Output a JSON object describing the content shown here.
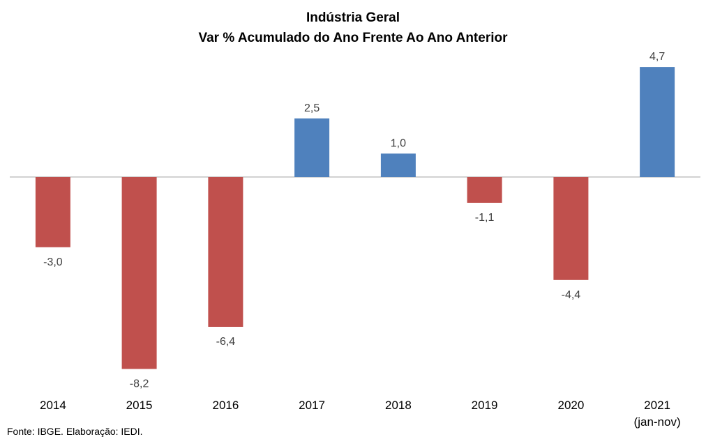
{
  "chart_data": {
    "type": "bar",
    "title": "Indústria Geral",
    "subtitle": "Var % Acumulado do Ano Frente Ao Ano Anterior",
    "categories": [
      "2014",
      "2015",
      "2016",
      "2017",
      "2018",
      "2019",
      "2020",
      "2021"
    ],
    "category_sublabels": [
      "",
      "",
      "",
      "",
      "",
      "",
      "",
      "(jan-nov)"
    ],
    "values": [
      -3.0,
      -8.2,
      -6.4,
      2.5,
      1.0,
      -1.1,
      -4.4,
      4.7
    ],
    "data_labels": [
      "-3,0",
      "-8,2",
      "-6,4",
      "2,5",
      "1,0",
      "-1,1",
      "-4,4",
      "4,7"
    ],
    "ylim": [
      -8.2,
      4.7
    ],
    "grid": false,
    "legend": "none",
    "colors": {
      "positive": "#4F81BD",
      "negative": "#C0504D",
      "axis": "#A6A6A6"
    }
  },
  "source": "Fonte: IBGE. Elaboração: IEDI."
}
